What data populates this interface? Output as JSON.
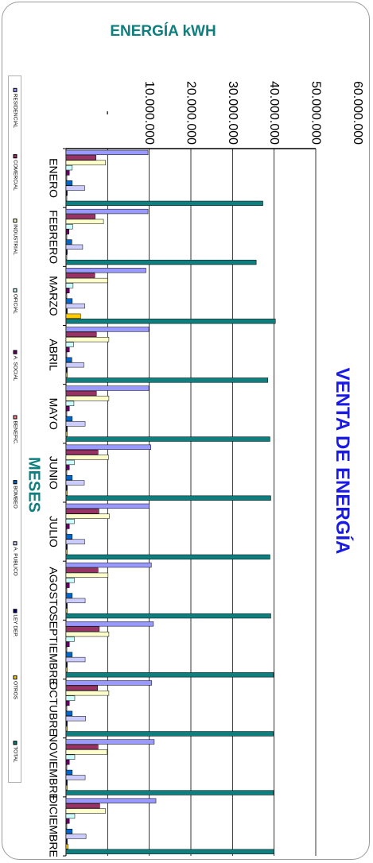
{
  "chart_data": {
    "type": "bar",
    "orientation": "horizontal",
    "title": "VENTA DE ENERGÍA",
    "ylabel": "ENERGÍA kWH",
    "xlabel": "MESES",
    "ylim": [
      0,
      60000000
    ],
    "tick_labels": [
      "-",
      "10.000.000",
      "20.000.000",
      "30.000.000",
      "40.000.000",
      "50.000.000",
      "60.000.000"
    ],
    "grid": true,
    "legend_position": "left",
    "categories": [
      "ENERO",
      "FEBRERO",
      "MARZO",
      "ABRIL",
      "MAYO",
      "JUNIO",
      "JULIO",
      "AGOSTO",
      "SEPTIEMBRE",
      "OCTUBRE",
      "NOVIEMBRE",
      "DICIEMBRE"
    ],
    "series": [
      {
        "name": "RESIDENCIAL",
        "color": "#9999ff",
        "values": [
          19700000,
          19700000,
          19200000,
          19900000,
          19900000,
          20400000,
          20000000,
          20500000,
          21000000,
          20600000,
          21200000,
          21600000
        ]
      },
      {
        "name": "COMERCIAL",
        "color": "#993366",
        "values": [
          7200000,
          7000000,
          6900000,
          7300000,
          7300000,
          7700000,
          7900000,
          7700000,
          8000000,
          7600000,
          7700000,
          8100000
        ]
      },
      {
        "name": "INDUSTRIAL",
        "color": "#ffffcc",
        "values": [
          9500000,
          9000000,
          10000000,
          10300000,
          10300000,
          10200000,
          10400000,
          10100000,
          10300000,
          10300000,
          9900000,
          9500000
        ]
      },
      {
        "name": "OFICIAL",
        "color": "#ccffff",
        "values": [
          1500000,
          1600000,
          1700000,
          1800000,
          1900000,
          2000000,
          2000000,
          2000000,
          2000000,
          2100000,
          2100000,
          2100000
        ]
      },
      {
        "name": "A. SOCIAL",
        "color": "#660066",
        "values": [
          800000,
          700000,
          800000,
          800000,
          800000,
          800000,
          800000,
          800000,
          800000,
          800000,
          800000,
          800000
        ]
      },
      {
        "name": "BENEFIC.",
        "color": "#ff8080",
        "values": [
          200000,
          200000,
          200000,
          200000,
          200000,
          200000,
          200000,
          200000,
          200000,
          200000,
          200000,
          200000
        ]
      },
      {
        "name": "BOMBEO",
        "color": "#0066cc",
        "values": [
          1500000,
          1400000,
          1500000,
          1400000,
          1500000,
          1500000,
          1500000,
          1500000,
          1500000,
          1500000,
          1500000,
          1500000
        ]
      },
      {
        "name": "A. PUBLICO",
        "color": "#ccccff",
        "values": [
          4500000,
          4000000,
          4500000,
          4300000,
          4600000,
          4400000,
          4500000,
          4600000,
          4600000,
          4700000,
          4600000,
          4800000
        ]
      },
      {
        "name": "LEY DEP.",
        "color": "#000080",
        "values": [
          300000,
          300000,
          300000,
          300000,
          300000,
          300000,
          300000,
          300000,
          300000,
          300000,
          300000,
          300000
        ]
      },
      {
        "name": "OTROS",
        "color": "#ffcc00",
        "values": [
          200000,
          200000,
          3500000,
          300000,
          300000,
          300000,
          300000,
          300000,
          300000,
          300000,
          300000,
          500000
        ]
      },
      {
        "name": "TOTAL",
        "color": "#0e7e7e",
        "values": [
          47300000,
          45700000,
          50300000,
          48500000,
          49000000,
          49200000,
          49000000,
          49200000,
          49900000,
          49800000,
          49900000,
          50000000
        ]
      }
    ]
  }
}
